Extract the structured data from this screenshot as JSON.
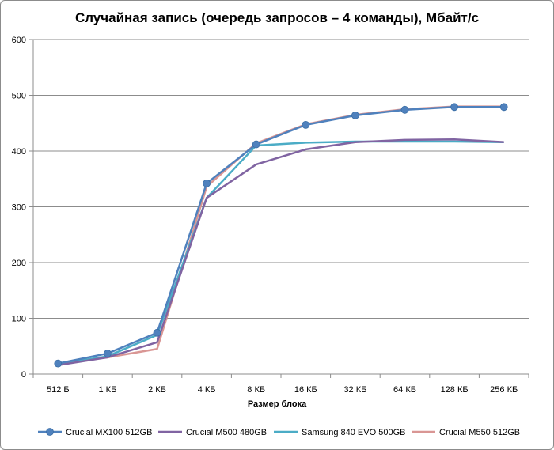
{
  "chart_data": {
    "type": "line",
    "title": "Случайная запись (очередь запросов – 4 команды), Мбайт/с",
    "xlabel": "Размер блока",
    "ylabel": "",
    "categories": [
      "512 Б",
      "1 КБ",
      "2 КБ",
      "4 КБ",
      "8 КБ",
      "16 КБ",
      "32 КБ",
      "64 КБ",
      "128 КБ",
      "256 КБ"
    ],
    "ylim": [
      0,
      600
    ],
    "yticks": [
      0,
      100,
      200,
      300,
      400,
      500,
      600
    ],
    "grid": true,
    "legend": "bottom",
    "series": [
      {
        "name": "Crucial MX100 512GB",
        "color": "#4f81bd",
        "markers": true,
        "values": [
          19,
          37,
          74,
          342,
          412,
          447,
          464,
          474,
          479,
          479
        ]
      },
      {
        "name": "Crucial M500 480GB",
        "color": "#8064a2",
        "markers": false,
        "values": [
          16,
          30,
          57,
          316,
          376,
          403,
          416,
          420,
          421,
          416
        ]
      },
      {
        "name": "Samsung 840 EVO 500GB",
        "color": "#4bacc6",
        "markers": false,
        "values": [
          18,
          32,
          70,
          316,
          410,
          415,
          417,
          417,
          417,
          416
        ]
      },
      {
        "name": "Crucial M550 512GB",
        "color": "#d99694",
        "markers": false,
        "values": [
          18,
          30,
          45,
          336,
          414,
          448,
          465,
          475,
          480,
          480
        ]
      }
    ]
  }
}
